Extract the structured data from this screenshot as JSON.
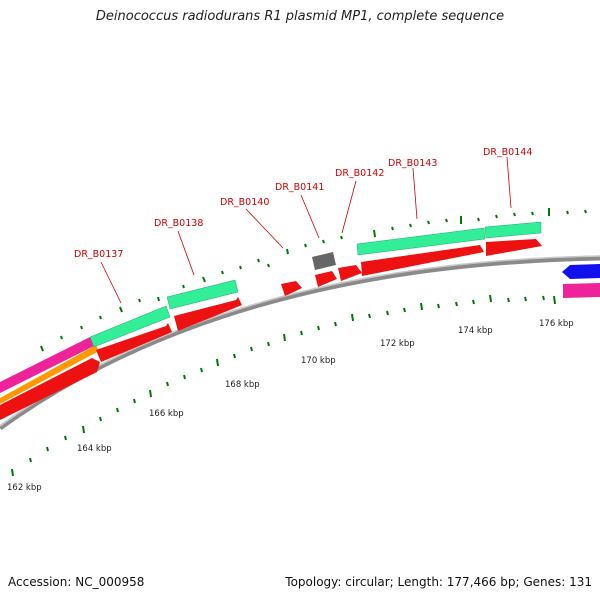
{
  "title": "Deinococcus radiodurans R1 plasmid MP1, complete sequence",
  "footer": {
    "accession": "Accession: NC_000958",
    "info": "Topology: circular; Length: 177,466 bp; Genes: 131"
  },
  "colors": {
    "backbone": "#888888",
    "cds_red": "#ee1111",
    "gene_green": "#33ee99",
    "pseudo_gray": "#666666",
    "magenta": "#ee2299",
    "orange": "#ff9900",
    "blue": "#1111ee",
    "tick_green": "#007700",
    "label_red": "#cc0000"
  },
  "map": {
    "ticks": [
      {
        "label": "162 kbp",
        "pos": 162
      },
      {
        "label": "164 kbp",
        "pos": 164
      },
      {
        "label": "166 kbp",
        "pos": 166
      },
      {
        "label": "168 kbp",
        "pos": 168
      },
      {
        "label": "170 kbp",
        "pos": 170
      },
      {
        "label": "172 kbp",
        "pos": 172
      },
      {
        "label": "174 kbp",
        "pos": 174
      },
      {
        "label": "176 kbp",
        "pos": 176
      }
    ],
    "gene_labels": [
      {
        "name": "DR_B0137"
      },
      {
        "name": "DR_B0138"
      },
      {
        "name": "DR_B0140"
      },
      {
        "name": "DR_B0141"
      },
      {
        "name": "DR_B0142"
      },
      {
        "name": "DR_B0143"
      },
      {
        "name": "DR_B0144"
      }
    ]
  }
}
